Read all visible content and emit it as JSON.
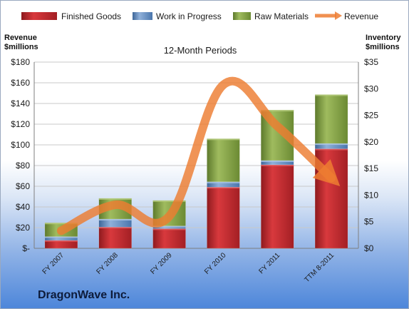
{
  "chart_data": {
    "type": "bar",
    "subtitle": "12-Month Periods",
    "left_axis_title": [
      "Revenue",
      "$millions"
    ],
    "right_axis_title": [
      "Inventory",
      "$millions"
    ],
    "categories": [
      "FY 2007",
      "FY 2008",
      "FY 2009",
      "FY 2010",
      "FY 2011",
      "TTM 8-2011"
    ],
    "left_axis": {
      "min": 0,
      "max": 180,
      "ticks": [
        "$-",
        "$20",
        "$40",
        "$60",
        "$80",
        "$100",
        "$120",
        "$140",
        "$160",
        "$180"
      ]
    },
    "right_axis": {
      "min": 0,
      "max": 35,
      "ticks": [
        "$0",
        "$5",
        "$10",
        "$15",
        "$20",
        "$25",
        "$30",
        "$35"
      ]
    },
    "stacked_series_axis": "right",
    "series": [
      {
        "name": "Finished Goods",
        "kind": "bar",
        "color": "#c0262b",
        "values": [
          1.5,
          4.0,
          3.7,
          11.5,
          15.7,
          18.7
        ]
      },
      {
        "name": "Work in Progress",
        "kind": "bar",
        "color": "#4f81bd",
        "values": [
          0.7,
          1.5,
          0.5,
          1.0,
          0.8,
          1.0
        ]
      },
      {
        "name": "Raw Materials",
        "kind": "bar",
        "color": "#77933c",
        "values": [
          2.6,
          3.9,
          4.8,
          8.1,
          9.5,
          9.2
        ]
      },
      {
        "name": "Revenue",
        "kind": "line",
        "axis": "left",
        "color": "#ed7d31",
        "values": [
          17,
          42,
          31,
          158,
          118,
          68
        ]
      }
    ],
    "grid": true,
    "legend_position": "top"
  },
  "company": "DragonWave Inc."
}
